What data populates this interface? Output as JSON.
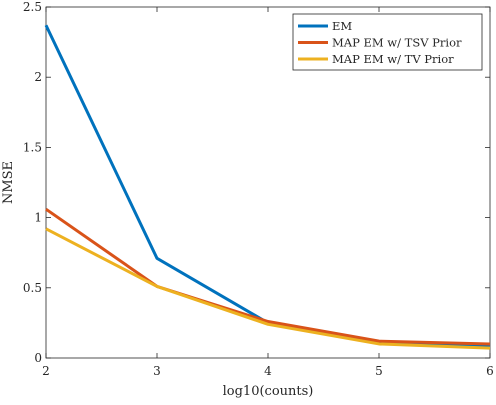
{
  "chart_data": {
    "type": "line",
    "title": "",
    "xlabel": "log10(counts)",
    "ylabel": "NMSE",
    "x": [
      2,
      3,
      4,
      5,
      6
    ],
    "xlim": [
      2,
      6
    ],
    "ylim": [
      0,
      2.5
    ],
    "xticks": [
      "2",
      "3",
      "4",
      "5",
      "6"
    ],
    "yticks": [
      "0",
      "0.5",
      "1",
      "1.5",
      "2",
      "2.5"
    ],
    "grid": false,
    "legend_position": "top-right",
    "series": [
      {
        "name": "EM",
        "color": "#0072BD",
        "values": [
          2.37,
          0.71,
          0.25,
          0.11,
          0.09
        ]
      },
      {
        "name": "MAP EM w/ TSV Prior",
        "color": "#D95319",
        "values": [
          1.06,
          0.51,
          0.26,
          0.12,
          0.1
        ]
      },
      {
        "name": "MAP EM w/ TV Prior",
        "color": "#EDB120",
        "values": [
          0.92,
          0.51,
          0.24,
          0.1,
          0.07
        ]
      }
    ]
  }
}
